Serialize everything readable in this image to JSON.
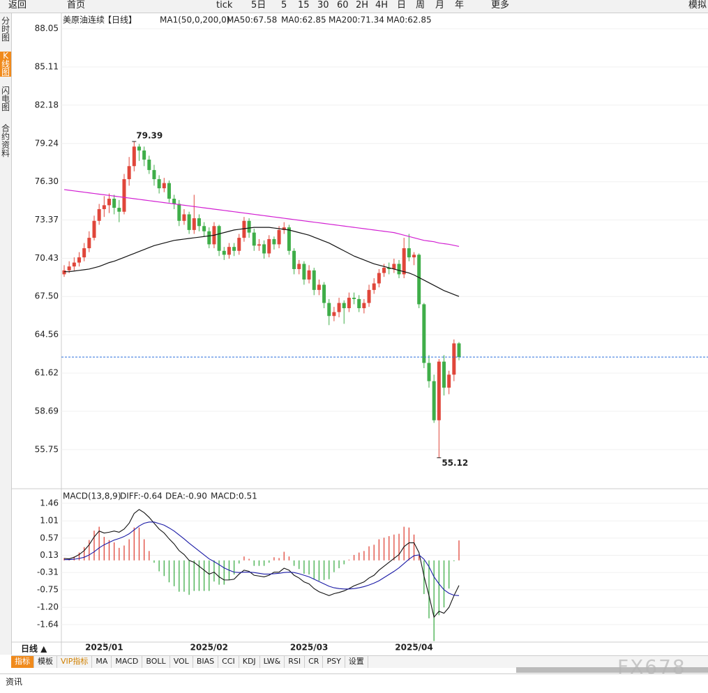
{
  "ui": {
    "toolbar": [
      "返回",
      "首页",
      "tick",
      "5日",
      "5",
      "15",
      "30",
      "60",
      "2H",
      "4H",
      "日",
      "周",
      "月",
      "年",
      "更多",
      "模拟"
    ],
    "side_tabs": [
      "分时图",
      "K线图",
      "闪电图",
      "合约资料"
    ],
    "period_button": "日线 ▲",
    "bottom_tabs": [
      "指标",
      "模板",
      "VIP指标",
      "MA",
      "MACD",
      "BOLL",
      "VOL",
      "BIAS",
      "CCI",
      "KDJ",
      "LW&",
      "RSI",
      "CR",
      "PSY",
      "设置"
    ],
    "news_tab": "资讯",
    "watermark": "FX678"
  },
  "chart_data": {
    "type": "candlestick",
    "title": "美原油连续",
    "period": "【日线】",
    "indicator": "MA1(50,0,200,0)",
    "ma0_label": "MA0:62.85",
    "ma0_label_2": "MA0:62.85",
    "up_color": "#e0463a",
    "down_color": "#3fae49",
    "ylim": [
      52.8,
      89.07
    ],
    "yticks": [
      88.05,
      85.11,
      82.18,
      79.24,
      {
        "value": 76.3,
        "label": "76.30"
      },
      73.37,
      70.43,
      {
        "value": 67.5,
        "label": "67.50"
      },
      64.56,
      61.62,
      58.69,
      55.75
    ],
    "grid": true,
    "categories": [
      null,
      null,
      null,
      null,
      null,
      null,
      null,
      null,
      "2025/01",
      null,
      null,
      null,
      null,
      null,
      null,
      null,
      null,
      null,
      null,
      null,
      null,
      null,
      null,
      null,
      null,
      null,
      null,
      null,
      null,
      "2025/02",
      null,
      null,
      null,
      null,
      null,
      null,
      null,
      null,
      null,
      null,
      null,
      null,
      null,
      null,
      null,
      null,
      null,
      null,
      null,
      "2025/03",
      null,
      null,
      null,
      null,
      null,
      null,
      null,
      null,
      null,
      null,
      null,
      null,
      null,
      null,
      null,
      null,
      null,
      null,
      null,
      null,
      "2025/04",
      null,
      null,
      null,
      null,
      null,
      null,
      null,
      null,
      null
    ],
    "candles": [
      [
        69.2,
        69.9,
        69.0,
        69.5
      ],
      [
        69.5,
        70.2,
        69.3,
        69.8
      ],
      [
        69.8,
        70.5,
        69.5,
        70.1
      ],
      [
        70.1,
        70.9,
        69.8,
        70.5
      ],
      [
        70.5,
        71.6,
        70.2,
        71.2
      ],
      [
        71.2,
        72.5,
        70.9,
        72.0
      ],
      [
        72.0,
        73.7,
        71.8,
        73.3
      ],
      [
        73.3,
        74.6,
        73.0,
        74.2
      ],
      [
        74.2,
        75.2,
        73.6,
        74.5
      ],
      [
        74.5,
        75.4,
        73.9,
        75.0
      ],
      [
        75.0,
        75.3,
        73.8,
        74.3
      ],
      [
        74.3,
        74.9,
        73.2,
        74.0
      ],
      [
        74.0,
        76.9,
        73.8,
        76.5
      ],
      [
        76.5,
        78.2,
        76.0,
        77.5
      ],
      [
        77.5,
        79.39,
        77.1,
        79.0
      ],
      [
        79.0,
        79.2,
        77.9,
        78.7
      ],
      [
        78.7,
        79.0,
        77.5,
        78.0
      ],
      [
        78.0,
        78.3,
        76.9,
        77.2
      ],
      [
        77.2,
        77.6,
        76.0,
        76.5
      ],
      [
        76.5,
        76.8,
        75.4,
        75.8
      ],
      [
        75.8,
        76.6,
        75.5,
        76.2
      ],
      [
        76.2,
        76.4,
        74.7,
        75.0
      ],
      [
        75.0,
        75.3,
        74.2,
        74.6
      ],
      [
        74.6,
        74.9,
        72.9,
        73.3
      ],
      [
        73.3,
        74.2,
        73.0,
        73.8
      ],
      [
        73.8,
        74.0,
        72.3,
        72.6
      ],
      [
        72.6,
        75.3,
        72.3,
        73.5
      ],
      [
        73.5,
        73.8,
        72.5,
        72.9
      ],
      [
        72.9,
        73.2,
        72.1,
        72.5
      ],
      [
        72.5,
        72.8,
        71.2,
        71.5
      ],
      [
        71.5,
        73.2,
        71.2,
        72.9
      ],
      [
        72.9,
        73.0,
        70.6,
        71.0
      ],
      [
        71.0,
        71.3,
        70.3,
        70.7
      ],
      [
        70.7,
        71.6,
        70.4,
        71.3
      ],
      [
        71.3,
        71.6,
        70.6,
        71.0
      ],
      [
        71.0,
        72.3,
        70.7,
        72.0
      ],
      [
        72.0,
        73.6,
        71.7,
        73.3
      ],
      [
        73.3,
        73.5,
        72.0,
        72.4
      ],
      [
        72.4,
        72.7,
        71.0,
        71.4
      ],
      [
        71.4,
        71.9,
        71.0,
        71.5
      ],
      [
        71.5,
        71.8,
        70.4,
        70.8
      ],
      [
        70.8,
        72.2,
        70.5,
        71.9
      ],
      [
        71.9,
        72.1,
        71.1,
        71.5
      ],
      [
        71.5,
        72.9,
        71.2,
        72.6
      ],
      [
        72.6,
        73.2,
        72.3,
        72.8
      ],
      [
        72.8,
        73.0,
        70.7,
        71.0
      ],
      [
        71.0,
        71.2,
        69.2,
        69.6
      ],
      [
        69.6,
        70.3,
        69.2,
        70.0
      ],
      [
        70.0,
        70.2,
        68.4,
        68.8
      ],
      [
        68.8,
        69.9,
        68.5,
        69.5
      ],
      [
        69.5,
        69.7,
        67.6,
        68.0
      ],
      [
        68.0,
        68.8,
        67.6,
        68.4
      ],
      [
        68.4,
        68.6,
        66.6,
        67.0
      ],
      [
        67.0,
        67.3,
        65.3,
        66.0
      ],
      [
        66.0,
        66.7,
        65.6,
        66.3
      ],
      [
        66.3,
        67.4,
        65.9,
        67.0
      ],
      [
        67.0,
        67.2,
        65.4,
        66.6
      ],
      [
        66.6,
        67.8,
        66.3,
        67.4
      ],
      [
        67.4,
        67.8,
        66.9,
        67.3
      ],
      [
        67.3,
        67.6,
        66.3,
        66.6
      ],
      [
        66.6,
        67.3,
        66.2,
        67.0
      ],
      [
        67.0,
        68.4,
        66.7,
        68.0
      ],
      [
        68.0,
        68.9,
        67.7,
        68.5
      ],
      [
        68.5,
        69.6,
        68.2,
        69.3
      ],
      [
        69.3,
        70.0,
        69.0,
        69.7
      ],
      [
        69.7,
        70.1,
        69.2,
        69.6
      ],
      [
        69.6,
        70.4,
        69.3,
        70.0
      ],
      [
        70.0,
        70.3,
        68.9,
        69.2
      ],
      [
        69.2,
        72.0,
        68.9,
        71.2
      ],
      [
        71.2,
        72.3,
        70.2,
        70.5
      ],
      [
        70.5,
        70.9,
        69.9,
        70.7
      ],
      [
        70.7,
        70.8,
        66.6,
        66.9
      ],
      [
        66.9,
        67.0,
        62.0,
        62.4
      ],
      [
        62.4,
        63.0,
        60.5,
        61.0
      ],
      [
        61.0,
        61.5,
        57.8,
        58.0
      ],
      [
        58.0,
        62.7,
        55.12,
        62.5
      ],
      [
        62.5,
        63.0,
        59.9,
        60.5
      ],
      [
        60.5,
        61.8,
        60.0,
        61.5
      ],
      [
        61.5,
        64.2,
        61.0,
        63.9
      ],
      [
        63.9,
        64.0,
        62.6,
        62.85
      ]
    ],
    "series": [
      {
        "name": "MA50:67.58",
        "color": "#111111",
        "values": [
          69.4,
          69.4,
          69.45,
          69.5,
          69.55,
          69.6,
          69.7,
          69.8,
          69.95,
          70.1,
          70.2,
          70.35,
          70.5,
          70.65,
          70.8,
          70.95,
          71.1,
          71.25,
          71.4,
          71.5,
          71.6,
          71.7,
          71.8,
          71.85,
          71.9,
          71.95,
          72.0,
          72.05,
          72.1,
          72.15,
          72.2,
          72.3,
          72.4,
          72.5,
          72.6,
          72.65,
          72.7,
          72.75,
          72.8,
          72.8,
          72.8,
          72.8,
          72.75,
          72.7,
          72.65,
          72.6,
          72.5,
          72.4,
          72.3,
          72.2,
          72.05,
          71.9,
          71.75,
          71.6,
          71.4,
          71.2,
          71.0,
          70.8,
          70.6,
          70.45,
          70.3,
          70.15,
          70.0,
          69.9,
          69.8,
          69.7,
          69.6,
          69.5,
          69.4,
          69.3,
          69.15,
          68.95,
          68.75,
          68.55,
          68.35,
          68.15,
          67.95,
          67.8,
          67.65,
          67.5
        ]
      },
      {
        "name": "MA200:71.34",
        "color": "#d21fd2",
        "values": [
          75.7,
          75.65,
          75.6,
          75.55,
          75.5,
          75.45,
          75.4,
          75.35,
          75.3,
          75.25,
          75.2,
          75.15,
          75.1,
          75.05,
          75.0,
          74.95,
          74.9,
          74.85,
          74.8,
          74.75,
          74.7,
          74.65,
          74.6,
          74.55,
          74.5,
          74.45,
          74.4,
          74.35,
          74.3,
          74.25,
          74.2,
          74.15,
          74.1,
          74.05,
          74.0,
          73.95,
          73.9,
          73.85,
          73.8,
          73.75,
          73.7,
          73.65,
          73.6,
          73.55,
          73.5,
          73.45,
          73.4,
          73.35,
          73.3,
          73.25,
          73.2,
          73.15,
          73.1,
          73.05,
          73.0,
          72.95,
          72.9,
          72.85,
          72.8,
          72.75,
          72.7,
          72.65,
          72.6,
          72.55,
          72.5,
          72.45,
          72.4,
          72.3,
          72.2,
          72.1,
          72.0,
          71.9,
          71.8,
          71.75,
          71.7,
          71.6,
          71.55,
          71.5,
          71.42,
          71.34
        ]
      }
    ],
    "macd": {
      "title": "MACD(13,8,9)",
      "ylim": [
        -2.07,
        1.76
      ],
      "yticks": [
        1.46,
        1.01,
        0.57,
        0.13,
        -0.31,
        -0.75,
        {
          "value": -1.2,
          "label": "-1.20"
        },
        -1.64
      ],
      "series": [
        {
          "name": "DIFF:-0.64",
          "color": "#111111",
          "values": [
            0.05,
            0.04,
            0.08,
            0.15,
            0.25,
            0.4,
            0.6,
            0.75,
            0.7,
            0.72,
            0.75,
            0.72,
            0.8,
            0.95,
            1.2,
            1.3,
            1.22,
            1.1,
            0.95,
            0.8,
            0.7,
            0.55,
            0.42,
            0.25,
            0.15,
            0.0,
            -0.05,
            -0.15,
            -0.25,
            -0.35,
            -0.3,
            -0.42,
            -0.5,
            -0.5,
            -0.48,
            -0.35,
            -0.25,
            -0.28,
            -0.38,
            -0.4,
            -0.42,
            -0.38,
            -0.3,
            -0.3,
            -0.2,
            -0.25,
            -0.38,
            -0.45,
            -0.55,
            -0.6,
            -0.72,
            -0.8,
            -0.85,
            -0.9,
            -0.85,
            -0.82,
            -0.78,
            -0.72,
            -0.65,
            -0.6,
            -0.55,
            -0.45,
            -0.38,
            -0.25,
            -0.15,
            -0.05,
            0.05,
            0.15,
            0.35,
            0.45,
            0.45,
            0.2,
            -0.4,
            -0.9,
            -1.45,
            -1.3,
            -1.35,
            -1.2,
            -0.9,
            -0.64
          ]
        },
        {
          "name": "DEA:-0.90",
          "color": "#1a1aa6",
          "values": [
            0.02,
            0.02,
            0.03,
            0.05,
            0.08,
            0.14,
            0.22,
            0.32,
            0.4,
            0.46,
            0.52,
            0.56,
            0.61,
            0.68,
            0.78,
            0.88,
            0.95,
            0.98,
            0.98,
            0.94,
            0.9,
            0.83,
            0.75,
            0.65,
            0.55,
            0.44,
            0.34,
            0.24,
            0.14,
            0.04,
            -0.03,
            -0.11,
            -0.19,
            -0.25,
            -0.3,
            -0.31,
            -0.3,
            -0.3,
            -0.31,
            -0.33,
            -0.35,
            -0.35,
            -0.34,
            -0.33,
            -0.31,
            -0.3,
            -0.31,
            -0.34,
            -0.38,
            -0.42,
            -0.48,
            -0.54,
            -0.6,
            -0.66,
            -0.7,
            -0.72,
            -0.73,
            -0.73,
            -0.72,
            -0.7,
            -0.67,
            -0.63,
            -0.58,
            -0.52,
            -0.44,
            -0.36,
            -0.28,
            -0.19,
            -0.08,
            0.03,
            0.12,
            0.14,
            0.03,
            -0.16,
            -0.42,
            -0.6,
            -0.75,
            -0.84,
            -0.89,
            -0.9
          ]
        },
        {
          "name": "MACD:0.51",
          "color": "#d21fd2",
          "values": [
            0.06,
            0.04,
            0.1,
            0.2,
            0.34,
            0.52,
            0.76,
            0.86,
            0.6,
            0.52,
            0.46,
            0.32,
            0.38,
            0.54,
            0.84,
            0.84,
            0.54,
            0.24,
            -0.06,
            -0.28,
            -0.4,
            -0.56,
            -0.66,
            -0.8,
            -0.8,
            -0.88,
            -0.78,
            -0.78,
            -0.78,
            -0.78,
            -0.54,
            -0.62,
            -0.62,
            -0.5,
            -0.36,
            -0.08,
            0.1,
            0.04,
            -0.14,
            -0.14,
            -0.14,
            -0.06,
            0.08,
            0.06,
            0.22,
            0.1,
            -0.14,
            -0.22,
            -0.34,
            -0.36,
            -0.48,
            -0.52,
            -0.5,
            -0.48,
            -0.3,
            -0.2,
            -0.1,
            0.02,
            0.14,
            0.2,
            0.24,
            0.36,
            0.4,
            0.54,
            0.58,
            0.62,
            0.66,
            0.68,
            0.86,
            0.84,
            0.66,
            0.12,
            -0.86,
            -1.48,
            -2.06,
            -1.4,
            -1.2,
            -0.72,
            -0.02,
            0.51
          ]
        }
      ]
    }
  }
}
